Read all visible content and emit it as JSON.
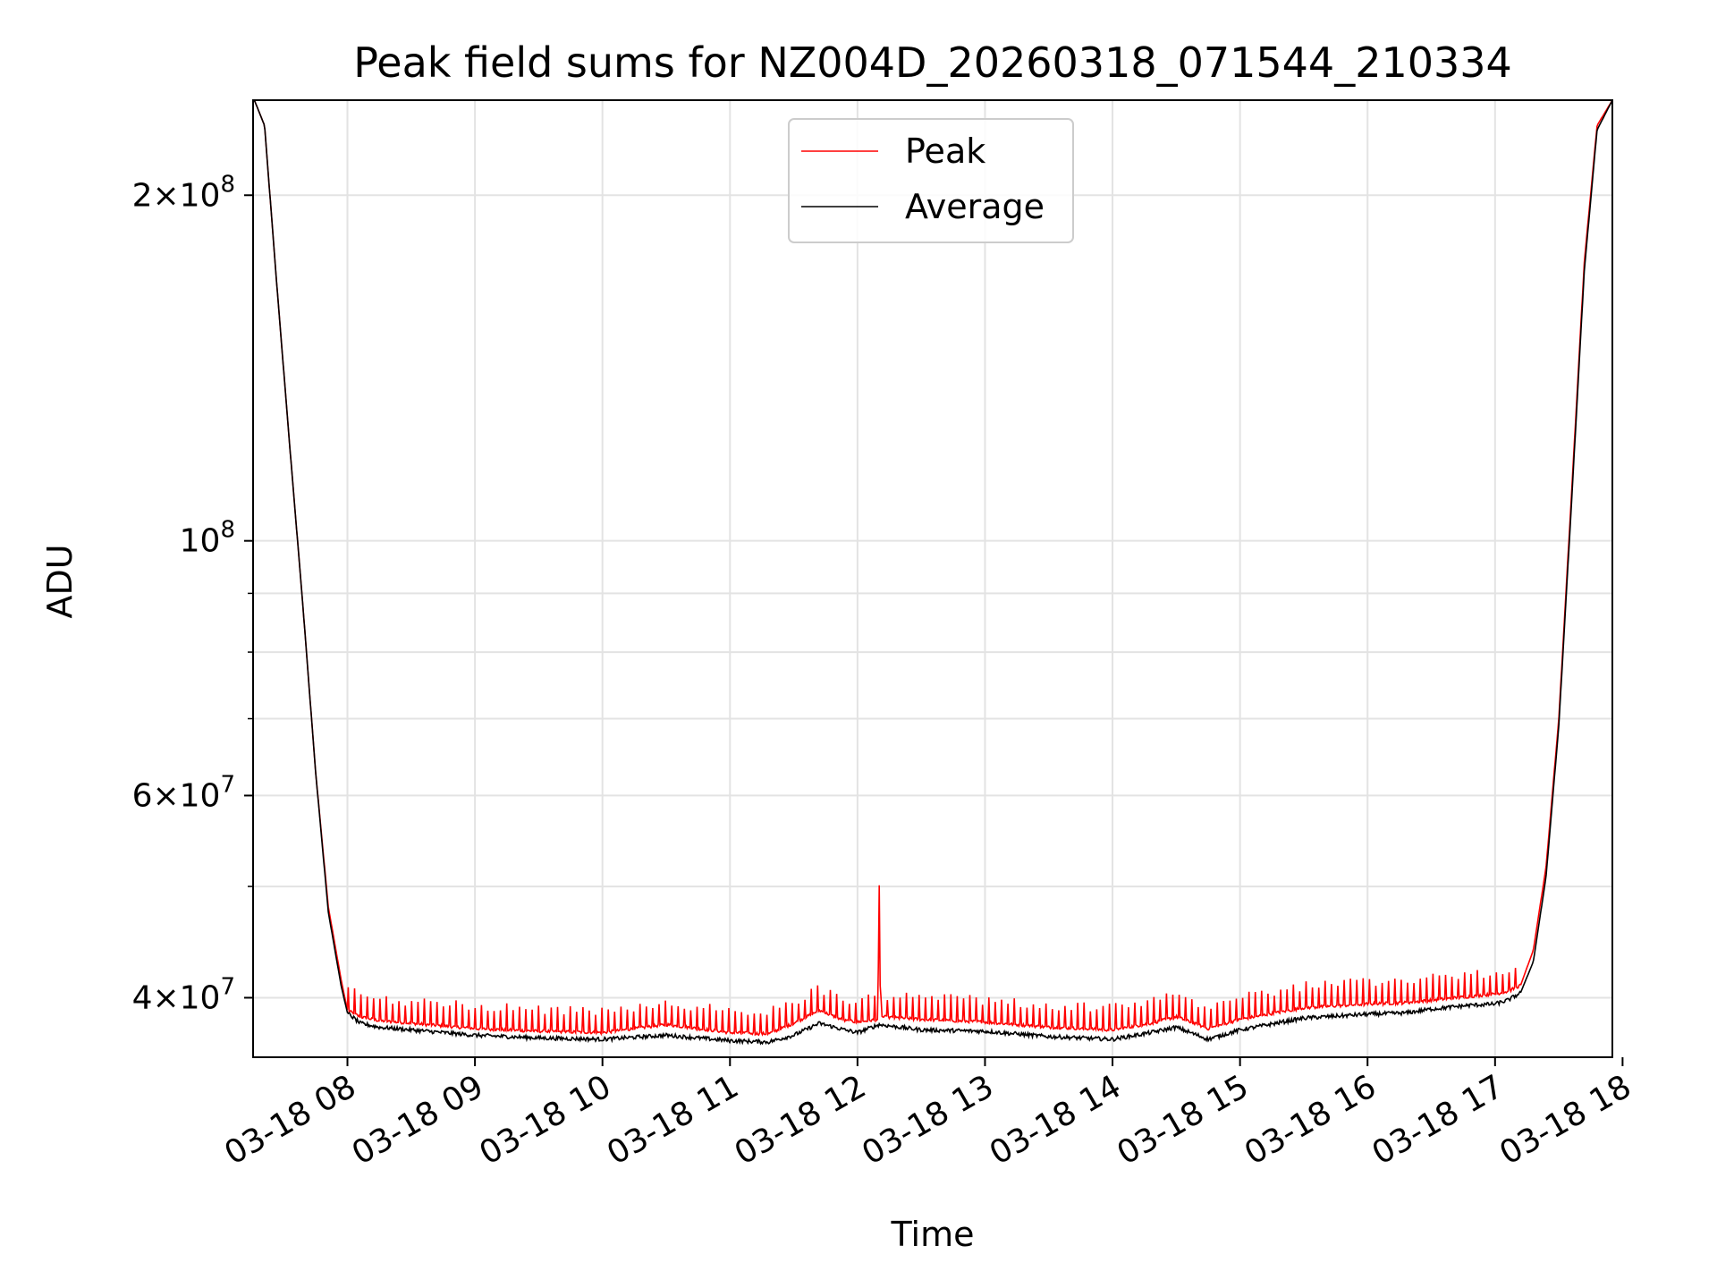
{
  "chart_data": {
    "type": "line",
    "title": "Peak field sums for NZ004D_20260318_071544_210334",
    "xlabel": "Time",
    "ylabel": "ADU",
    "y_scale": "log",
    "xlim": [
      7.26,
      17.92
    ],
    "ylim": [
      35500000,
      242000000
    ],
    "x_tick_values": [
      8,
      9,
      10,
      11,
      12,
      13,
      14,
      15,
      16,
      17,
      18
    ],
    "x_tick_labels": [
      "03-18 08",
      "03-18 09",
      "03-18 10",
      "03-18 11",
      "03-18 12",
      "03-18 13",
      "03-18 14",
      "03-18 15",
      "03-18 16",
      "03-18 17",
      "03-18 18"
    ],
    "y_major_ticks": [
      {
        "value": 40000000,
        "mantissa": "4",
        "exponent": "7"
      },
      {
        "value": 60000000,
        "mantissa": "6",
        "exponent": "7"
      },
      {
        "value": 100000000,
        "mantissa": "",
        "exponent": "8"
      },
      {
        "value": 200000000,
        "mantissa": "2",
        "exponent": "8"
      }
    ],
    "y_minor_ticks": [
      50000000,
      70000000,
      80000000,
      90000000
    ],
    "grid": true,
    "legend": {
      "position": "top-center",
      "entries": [
        "Peak",
        "Average"
      ]
    },
    "series": [
      {
        "name": "Peak",
        "color": "#ff0000",
        "x": [
          7.27,
          7.35,
          7.45,
          7.55,
          7.65,
          7.75,
          7.85,
          7.95,
          8.0,
          8.1,
          8.25,
          8.5,
          8.75,
          9.0,
          9.5,
          10.0,
          10.5,
          11.0,
          11.3,
          11.5,
          11.7,
          11.9,
          12.0,
          12.16,
          12.17,
          12.18,
          12.5,
          13.0,
          13.5,
          14.0,
          14.3,
          14.5,
          14.75,
          15.0,
          15.5,
          16.0,
          16.3,
          16.5,
          16.8,
          17.0,
          17.1,
          17.2,
          17.3,
          17.4,
          17.5,
          17.6,
          17.7,
          17.8,
          17.92
        ],
        "y": [
          242000000,
          230000000,
          165000000,
          120000000,
          88000000,
          63000000,
          48000000,
          41500000,
          39000000,
          38500000,
          38200000,
          38000000,
          37800000,
          37600000,
          37400000,
          37300000,
          37900000,
          37300000,
          37200000,
          38000000,
          39000000,
          38200000,
          38100000,
          38300000,
          51000000,
          38500000,
          38300000,
          38100000,
          37700000,
          37500000,
          38000000,
          38500000,
          37600000,
          38300000,
          39200000,
          39500000,
          39600000,
          39800000,
          40100000,
          40300000,
          40500000,
          41000000,
          44000000,
          52000000,
          70000000,
          110000000,
          175000000,
          230000000,
          242000000
        ]
      },
      {
        "name": "Average",
        "color": "#000000",
        "x": [
          7.27,
          7.35,
          7.45,
          7.55,
          7.65,
          7.75,
          7.85,
          7.95,
          8.0,
          8.1,
          8.25,
          8.5,
          8.75,
          9.0,
          9.5,
          10.0,
          10.5,
          11.0,
          11.3,
          11.5,
          11.7,
          11.9,
          12.0,
          12.17,
          12.5,
          13.0,
          13.5,
          14.0,
          14.3,
          14.5,
          14.75,
          15.0,
          15.5,
          16.0,
          16.3,
          16.5,
          16.8,
          17.0,
          17.1,
          17.2,
          17.3,
          17.4,
          17.5,
          17.6,
          17.7,
          17.8,
          17.92
        ],
        "y": [
          242000000,
          230000000,
          165000000,
          120000000,
          88000000,
          63000000,
          47500000,
          41000000,
          38800000,
          38000000,
          37700000,
          37500000,
          37300000,
          37100000,
          36900000,
          36800000,
          37100000,
          36700000,
          36600000,
          37100000,
          38000000,
          37500000,
          37300000,
          37900000,
          37500000,
          37400000,
          37000000,
          36800000,
          37300000,
          37700000,
          36800000,
          37500000,
          38400000,
          38700000,
          38800000,
          39100000,
          39400000,
          39500000,
          39800000,
          40400000,
          43000000,
          51000000,
          69000000,
          108000000,
          172000000,
          228000000,
          242000000
        ]
      }
    ]
  }
}
